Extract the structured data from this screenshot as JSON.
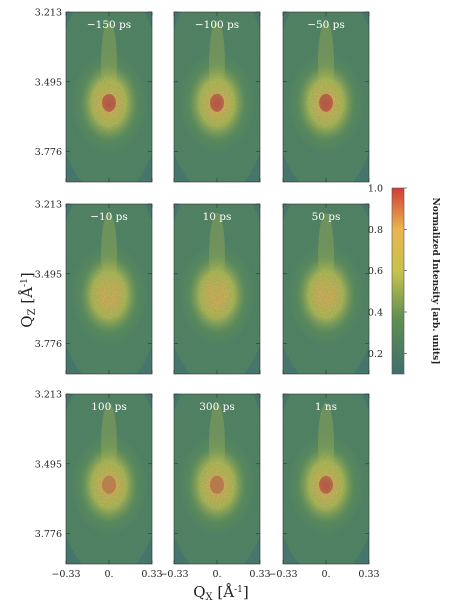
{
  "chart_data": {
    "type": "heatmap",
    "layout": {
      "rows": 3,
      "cols": 3
    },
    "panels": [
      {
        "label": "−150 ps",
        "peak": 0.95
      },
      {
        "label": "−100 ps",
        "peak": 0.95
      },
      {
        "label": "−50 ps",
        "peak": 0.96
      },
      {
        "label": "−10 ps",
        "peak": 0.74
      },
      {
        "label": "10 ps",
        "peak": 0.73
      },
      {
        "label": "50 ps",
        "peak": 0.72
      },
      {
        "label": "100 ps",
        "peak": 0.86
      },
      {
        "label": "300 ps",
        "peak": 0.88
      },
      {
        "label": "1 ns",
        "peak": 0.93
      }
    ],
    "x_axis": {
      "title_main": "Q",
      "title_sub": "X",
      "unit": "Å",
      "unit_exp": "-1",
      "ticks": [
        "−0.33",
        "0.",
        "0.33"
      ],
      "range": [
        -0.33,
        0.33
      ]
    },
    "y_axis": {
      "title_main": "Q",
      "title_sub": "Z",
      "unit": "Å",
      "unit_exp": "-1",
      "ticks": [
        "3.213",
        "3.495",
        "3.776"
      ],
      "range": [
        3.213,
        3.9
      ]
    },
    "peak_position": {
      "qx": 0.0,
      "qz": 3.58
    },
    "colorbar": {
      "label": "Normalized Intensity [arb. units]",
      "ticks": [
        "1.0",
        "0.8",
        "0.6",
        "0.4",
        "0.2"
      ],
      "tick_values": [
        1.0,
        0.8,
        0.6,
        0.4,
        0.2
      ],
      "range": [
        0.1,
        1.0
      ]
    },
    "colors": {
      "low": "#3e6e6c",
      "mid_low": "#5f9050",
      "mid": "#c6c24b",
      "mid_high": "#e9b54f",
      "high": "#d23c35"
    }
  }
}
